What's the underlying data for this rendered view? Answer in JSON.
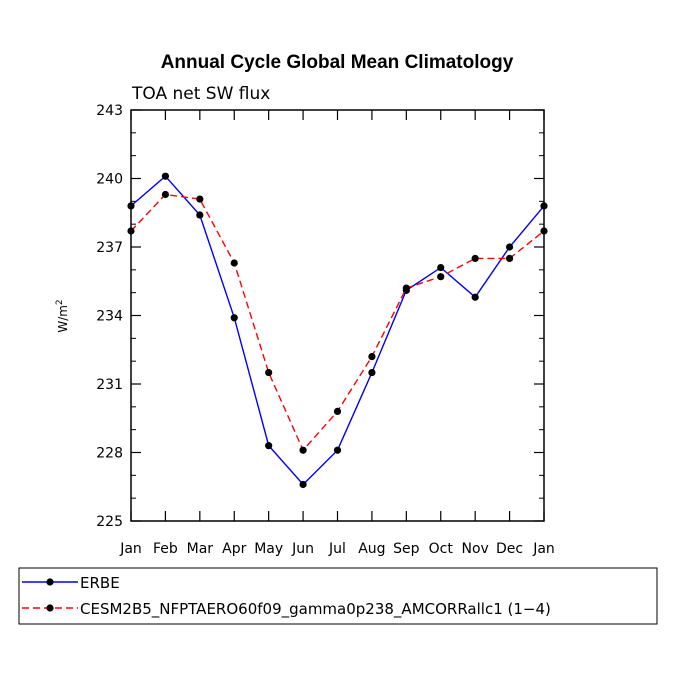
{
  "chart_data": {
    "type": "line",
    "title": "Annual Cycle Global Mean Climatology",
    "subtitle": "TOA net SW flux",
    "xlabel": "",
    "ylabel": "W/m",
    "ylabel_superscript": "2",
    "categories": [
      "Jan",
      "Feb",
      "Mar",
      "Apr",
      "May",
      "Jun",
      "Jul",
      "Aug",
      "Sep",
      "Oct",
      "Nov",
      "Dec",
      "Jan"
    ],
    "ylim": [
      225,
      243
    ],
    "yticks": [
      225,
      228,
      231,
      234,
      237,
      240,
      243
    ],
    "series": [
      {
        "name": "ERBE",
        "color": "#0000ff",
        "dash": "solid",
        "values": [
          238.8,
          240.1,
          238.4,
          233.9,
          228.3,
          226.6,
          228.1,
          231.5,
          235.1,
          236.1,
          234.8,
          237.0,
          238.8
        ]
      },
      {
        "name": "CESM2B5_NFPTAERO60f09_gamma0p238_AMCORRallc1 (1−4)",
        "color": "#ff0000",
        "dash": "dashed",
        "values": [
          237.7,
          239.3,
          239.1,
          236.3,
          231.5,
          228.1,
          229.8,
          232.2,
          235.2,
          235.7,
          236.5,
          236.5,
          237.7
        ]
      }
    ],
    "legend_position": "bottom"
  }
}
